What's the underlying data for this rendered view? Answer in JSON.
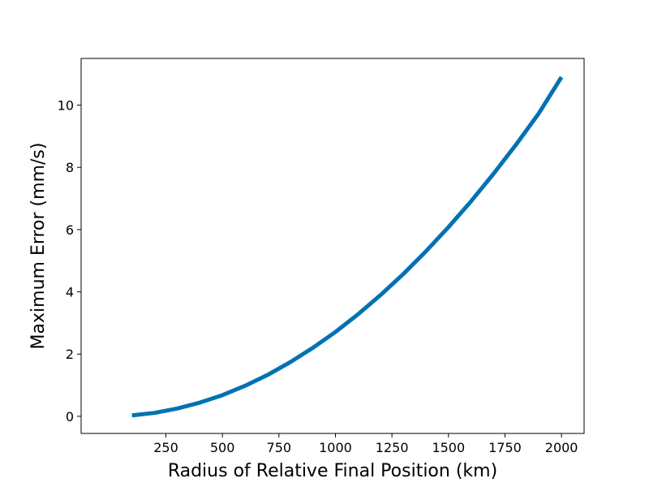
{
  "chart_data": {
    "type": "line",
    "xlabel": "Radius of Relative Final Position (km)",
    "ylabel": "Maximum Error (mm/s)",
    "xlim": [
      -125,
      2100
    ],
    "ylim": [
      -0.55,
      11.5
    ],
    "xticks": [
      250,
      500,
      750,
      1000,
      1250,
      1500,
      1750,
      2000
    ],
    "yticks": [
      0,
      2,
      4,
      6,
      8,
      10
    ],
    "grid": false,
    "series": [
      {
        "color": "#0072B2",
        "x": [
          100,
          200,
          300,
          400,
          500,
          600,
          700,
          800,
          900,
          1000,
          1100,
          1200,
          1300,
          1400,
          1500,
          1600,
          1700,
          1800,
          1900,
          2000
        ],
        "y": [
          0.03,
          0.11,
          0.25,
          0.44,
          0.68,
          0.98,
          1.33,
          1.74,
          2.2,
          2.71,
          3.28,
          3.9,
          4.57,
          5.3,
          6.08,
          6.91,
          7.8,
          8.74,
          9.74,
          10.9
        ]
      }
    ]
  }
}
